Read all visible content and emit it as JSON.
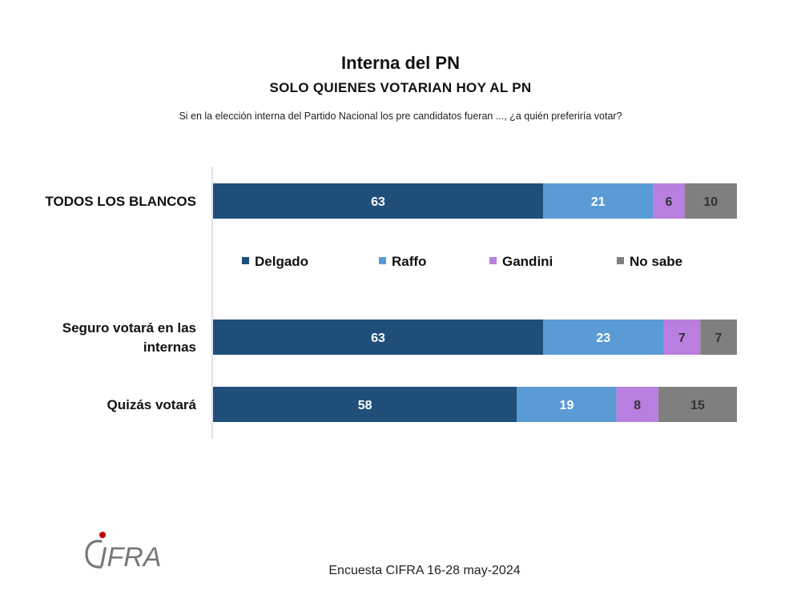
{
  "header": {
    "title": "Interna del PN",
    "subtitle": "SOLO QUIENES VOTARIAN HOY AL PN",
    "question": "Si en la elección interna del Partido Nacional los pre candidatos fueran ...,  ¿a quién preferiría votar?"
  },
  "footer": {
    "source": "Encuesta CIFRA  16-28 may-2024",
    "logo_text": "CIFRA"
  },
  "chart_data": {
    "type": "bar",
    "orientation": "horizontal",
    "stacked": true,
    "categories": [
      "TODOS LOS BLANCOS",
      "Seguro votará en las internas",
      "Quizás votará"
    ],
    "category_lines": [
      [
        "TODOS LOS BLANCOS"
      ],
      [
        "Seguro votará en las",
        "internas"
      ],
      [
        "Quizás votará"
      ]
    ],
    "series": [
      {
        "name": "Delgado",
        "values": [
          63,
          63,
          58
        ],
        "color": "#1f4e79"
      },
      {
        "name": "Raffo",
        "values": [
          21,
          23,
          19
        ],
        "color": "#5b9bd5"
      },
      {
        "name": "Gandini",
        "values": [
          6,
          7,
          8
        ],
        "color": "#b87fe0"
      },
      {
        "name": "No sabe",
        "values": [
          10,
          7,
          15
        ],
        "color": "#7f7f7f"
      }
    ],
    "label_colors": [
      "#ffffff",
      "#ffffff",
      "#333333",
      "#333333"
    ],
    "xlim": [
      0,
      100
    ],
    "legend_position": "between first and second bar",
    "grid": false
  }
}
